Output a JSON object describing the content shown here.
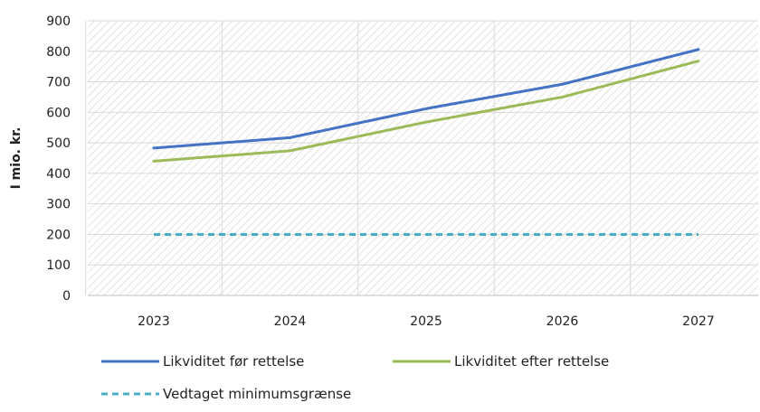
{
  "chart_data": {
    "type": "line",
    "ylabel": "I mio. kr.",
    "x": [
      "2023",
      "2024",
      "2025",
      "2026",
      "2027"
    ],
    "ylim": [
      0,
      900
    ],
    "yticks": [
      "0",
      "100",
      "200",
      "300",
      "400",
      "500",
      "600",
      "700",
      "800",
      "900"
    ],
    "grid": true,
    "background_pattern": "diagonal-hatch",
    "legend_position": "bottom",
    "series": [
      {
        "name": "Likviditet før rettelse",
        "values": [
          483,
          517,
          612,
          692,
          806
        ],
        "color": "#4472c4",
        "style": "solid"
      },
      {
        "name": "Likviditet efter rettelse",
        "values": [
          440,
          474,
          568,
          650,
          768
        ],
        "color": "#9bbb59",
        "style": "solid"
      },
      {
        "name": "Vedtaget minimumsgrænse",
        "values": [
          200,
          200,
          200,
          200,
          200
        ],
        "color": "#4bacc6",
        "style": "dashed"
      }
    ]
  }
}
